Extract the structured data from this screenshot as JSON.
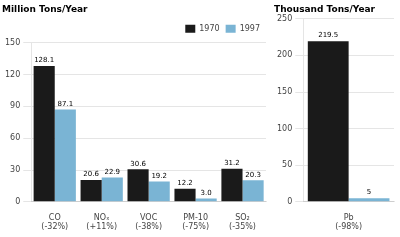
{
  "chart_data": [
    {
      "type": "bar",
      "title": "Million Tons/Year",
      "categories": [
        "CO\n(-32%)",
        "NOₓ\n(+11%)",
        "VOC\n(-38%)",
        "PM-10\n(-75%)",
        "SO₂\n(-35%)"
      ],
      "series": [
        {
          "name": "1970",
          "color": "#1a1a1a",
          "values": [
            128.1,
            20.6,
            30.6,
            12.2,
            31.2
          ]
        },
        {
          "name": "1997",
          "color": "#7ab4d4",
          "values": [
            87.1,
            22.9,
            19.2,
            3.0,
            20.3
          ],
          "value_labels": [
            "87.1",
            "22.9",
            "19.2",
            "3.0",
            "20.3"
          ]
        }
      ],
      "ylim": [
        0,
        150
      ],
      "yticks": [
        0,
        30,
        60,
        90,
        120,
        150
      ],
      "grid": true,
      "legend": "upper right",
      "data_labels": true
    },
    {
      "type": "bar",
      "title": "Thousand Tons/Year",
      "categories": [
        "Pb\n(-98%)"
      ],
      "series": [
        {
          "color": "#1a1a1a",
          "values": [
            219.5
          ]
        },
        {
          "color": "#7ab4d4",
          "values": [
            5.0
          ],
          "value_labels": [
            "5"
          ]
        }
      ],
      "ylim": [
        0,
        250
      ],
      "yticks": [
        0,
        50,
        100,
        150,
        200,
        250
      ],
      "grid": true,
      "data_labels": true
    }
  ]
}
